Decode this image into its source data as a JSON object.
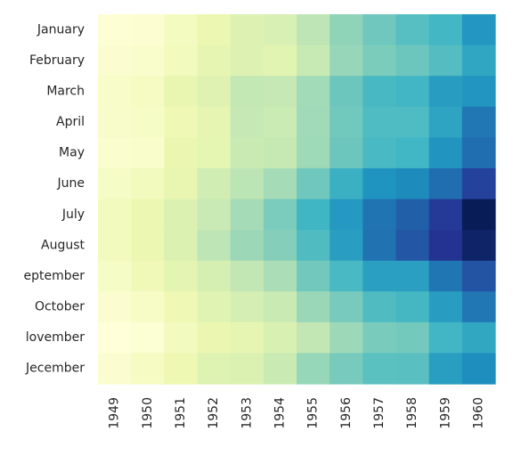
{
  "chart_data": {
    "type": "heatmap",
    "title": "",
    "xlabel": "",
    "ylabel": "",
    "colormap": "YlGnBu",
    "value_range": [
      104,
      622
    ],
    "x_categories": [
      "1949",
      "1950",
      "1951",
      "1952",
      "1953",
      "1954",
      "1955",
      "1956",
      "1957",
      "1958",
      "1959",
      "1960"
    ],
    "y_categories": [
      "January",
      "February",
      "March",
      "April",
      "May",
      "June",
      "July",
      "August",
      "September",
      "October",
      "November",
      "December"
    ],
    "y_tick_labels": [
      "January",
      "February",
      "March",
      "April",
      "May",
      "June",
      "July",
      "August",
      "eptember",
      "October",
      "lovember",
      "Jecember"
    ],
    "grid": false,
    "legend": "none",
    "values": [
      [
        112,
        115,
        145,
        171,
        196,
        204,
        242,
        284,
        315,
        340,
        360,
        417
      ],
      [
        118,
        126,
        150,
        180,
        196,
        188,
        233,
        277,
        301,
        318,
        342,
        391
      ],
      [
        132,
        141,
        178,
        193,
        236,
        235,
        267,
        317,
        356,
        362,
        406,
        419
      ],
      [
        129,
        135,
        163,
        181,
        235,
        227,
        269,
        313,
        348,
        348,
        396,
        461
      ],
      [
        121,
        125,
        172,
        183,
        229,
        234,
        270,
        318,
        355,
        363,
        420,
        472
      ],
      [
        135,
        149,
        178,
        218,
        243,
        264,
        315,
        374,
        422,
        435,
        472,
        535
      ],
      [
        148,
        170,
        199,
        230,
        264,
        302,
        364,
        413,
        465,
        491,
        548,
        622
      ],
      [
        148,
        170,
        199,
        242,
        272,
        293,
        347,
        405,
        467,
        505,
        559,
        606
      ],
      [
        136,
        158,
        184,
        209,
        237,
        259,
        312,
        355,
        404,
        404,
        463,
        508
      ],
      [
        119,
        133,
        162,
        191,
        211,
        229,
        274,
        306,
        347,
        359,
        407,
        461
      ],
      [
        104,
        114,
        146,
        172,
        180,
        203,
        237,
        271,
        305,
        310,
        362,
        390
      ],
      [
        118,
        140,
        166,
        194,
        201,
        229,
        278,
        306,
        336,
        337,
        405,
        432
      ]
    ]
  }
}
